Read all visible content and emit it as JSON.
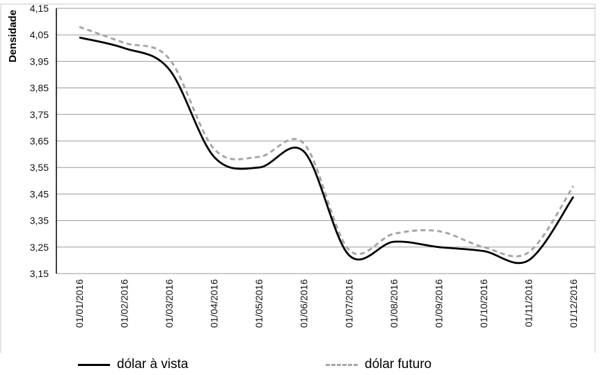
{
  "chart_data": {
    "type": "line",
    "title": "",
    "xlabel": "",
    "ylabel": "Densidade",
    "ylim": [
      3.15,
      4.15
    ],
    "yticks": [
      "4,15",
      "4,05",
      "3,95",
      "3,85",
      "3,75",
      "3,65",
      "3,55",
      "3,45",
      "3,35",
      "3,25",
      "3,15"
    ],
    "categories": [
      "01/01/2016",
      "01/02/2016",
      "01/03/2016",
      "01/04/2016",
      "01/05/2016",
      "01/06/2016",
      "01/07/2016",
      "01/08/2016",
      "01/09/2016",
      "01/10/2016",
      "01/11/2016",
      "01/12/2016"
    ],
    "series": [
      {
        "name": "dólar à vista",
        "color": "#000000",
        "style": "solid",
        "values": [
          4.04,
          4.0,
          3.92,
          3.59,
          3.55,
          3.61,
          3.22,
          3.27,
          3.25,
          3.235,
          3.2,
          3.44
        ]
      },
      {
        "name": "dólar futuro",
        "color": "#a6a6a6",
        "style": "dashed",
        "values": [
          4.08,
          4.02,
          3.96,
          3.62,
          3.59,
          3.64,
          3.24,
          3.3,
          3.31,
          3.25,
          3.23,
          3.48
        ]
      }
    ],
    "grid": true,
    "legend_position": "bottom"
  },
  "legend": {
    "items": [
      {
        "label": "dólar à vista"
      },
      {
        "label": "dólar futuro"
      }
    ]
  }
}
